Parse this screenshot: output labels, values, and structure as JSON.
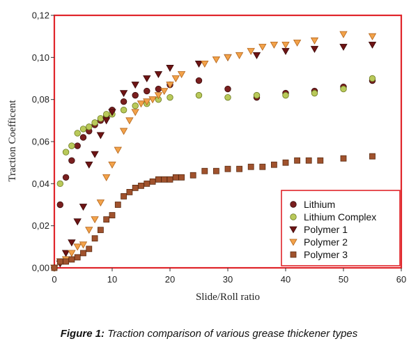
{
  "caption": {
    "label": "Figure 1:",
    "text": "Traction comparison of various grease thickener types"
  },
  "colors": {
    "frame": "#e0252a",
    "axis": "#333333",
    "legend_border": "#e0252a"
  },
  "chart_data": {
    "type": "scatter",
    "title": "",
    "xlabel": "Slide/Roll ratio",
    "ylabel": "Traction Coefficent",
    "xlim": [
      0,
      60
    ],
    "ylim": [
      0,
      0.12
    ],
    "xticks": [
      0,
      10,
      20,
      30,
      40,
      50,
      60
    ],
    "xtick_labels": [
      "0",
      "10",
      "20",
      "30",
      "40",
      "50",
      "60"
    ],
    "yticks": [
      0,
      0.02,
      0.04,
      0.06,
      0.08,
      0.1,
      0.12
    ],
    "ytick_labels": [
      "0,00",
      "0,02",
      "0,04",
      "0,06",
      "0,08",
      "0,10",
      "0,12"
    ],
    "grid": false,
    "legend_position": "bottom-right",
    "series": [
      {
        "name": "Lithium",
        "marker": "circle",
        "fill": "#7a1f1f",
        "stroke": "#3a0d0d",
        "points": [
          [
            0,
            0
          ],
          [
            1,
            0.03
          ],
          [
            2,
            0.043
          ],
          [
            3,
            0.051
          ],
          [
            4,
            0.058
          ],
          [
            5,
            0.062
          ],
          [
            6,
            0.065
          ],
          [
            7,
            0.068
          ],
          [
            8,
            0.07
          ],
          [
            9,
            0.072
          ],
          [
            10,
            0.075
          ],
          [
            12,
            0.079
          ],
          [
            14,
            0.082
          ],
          [
            16,
            0.084
          ],
          [
            18,
            0.085
          ],
          [
            20,
            0.087
          ],
          [
            25,
            0.089
          ],
          [
            30,
            0.085
          ],
          [
            35,
            0.081
          ],
          [
            40,
            0.083
          ],
          [
            45,
            0.084
          ],
          [
            50,
            0.086
          ],
          [
            55,
            0.089
          ]
        ]
      },
      {
        "name": "Lithium Complex",
        "marker": "circle",
        "fill": "#b9c95a",
        "stroke": "#6b7a20",
        "points": [
          [
            0,
            0
          ],
          [
            1,
            0.04
          ],
          [
            2,
            0.055
          ],
          [
            3,
            0.058
          ],
          [
            4,
            0.064
          ],
          [
            5,
            0.066
          ],
          [
            6,
            0.067
          ],
          [
            7,
            0.069
          ],
          [
            8,
            0.071
          ],
          [
            9,
            0.073
          ],
          [
            10,
            0.073
          ],
          [
            12,
            0.075
          ],
          [
            14,
            0.077
          ],
          [
            16,
            0.078
          ],
          [
            18,
            0.08
          ],
          [
            20,
            0.081
          ],
          [
            25,
            0.082
          ],
          [
            30,
            0.081
          ],
          [
            35,
            0.082
          ],
          [
            40,
            0.082
          ],
          [
            45,
            0.083
          ],
          [
            50,
            0.085
          ],
          [
            55,
            0.09
          ]
        ]
      },
      {
        "name": "Polymer 1",
        "marker": "triangle-down",
        "fill": "#6e1414",
        "stroke": "#3a0808",
        "points": [
          [
            0,
            0
          ],
          [
            1,
            0.002
          ],
          [
            2,
            0.007
          ],
          [
            3,
            0.012
          ],
          [
            4,
            0.022
          ],
          [
            5,
            0.029
          ],
          [
            6,
            0.049
          ],
          [
            7,
            0.054
          ],
          [
            8,
            0.063
          ],
          [
            9,
            0.07
          ],
          [
            10,
            0.074
          ],
          [
            12,
            0.083
          ],
          [
            14,
            0.087
          ],
          [
            16,
            0.09
          ],
          [
            18,
            0.092
          ],
          [
            20,
            0.095
          ],
          [
            25,
            0.097
          ],
          [
            30,
            0.1
          ],
          [
            35,
            0.101
          ],
          [
            40,
            0.103
          ],
          [
            45,
            0.104
          ],
          [
            50,
            0.105
          ],
          [
            55,
            0.106
          ]
        ]
      },
      {
        "name": "Polymer 2",
        "marker": "triangle-down",
        "fill": "#f2a24a",
        "stroke": "#b3641a",
        "points": [
          [
            0,
            0
          ],
          [
            1,
            0.003
          ],
          [
            2,
            0.004
          ],
          [
            3,
            0.007
          ],
          [
            4,
            0.01
          ],
          [
            5,
            0.011
          ],
          [
            6,
            0.018
          ],
          [
            7,
            0.023
          ],
          [
            8,
            0.031
          ],
          [
            9,
            0.043
          ],
          [
            10,
            0.049
          ],
          [
            11,
            0.056
          ],
          [
            12,
            0.065
          ],
          [
            13,
            0.07
          ],
          [
            14,
            0.074
          ],
          [
            15,
            0.078
          ],
          [
            16,
            0.079
          ],
          [
            17,
            0.08
          ],
          [
            18,
            0.082
          ],
          [
            19,
            0.084
          ],
          [
            20,
            0.087
          ],
          [
            21,
            0.09
          ],
          [
            22,
            0.092
          ],
          [
            26,
            0.097
          ],
          [
            28,
            0.099
          ],
          [
            30,
            0.1
          ],
          [
            32,
            0.101
          ],
          [
            34,
            0.103
          ],
          [
            36,
            0.105
          ],
          [
            38,
            0.106
          ],
          [
            40,
            0.106
          ],
          [
            42,
            0.107
          ],
          [
            45,
            0.108
          ],
          [
            50,
            0.111
          ],
          [
            55,
            0.11
          ]
        ]
      },
      {
        "name": "Polymer 3",
        "marker": "square",
        "fill": "#a0522d",
        "stroke": "#5a2a10",
        "points": [
          [
            0,
            0
          ],
          [
            1,
            0.003
          ],
          [
            2,
            0.003
          ],
          [
            3,
            0.004
          ],
          [
            4,
            0.005
          ],
          [
            5,
            0.007
          ],
          [
            6,
            0.009
          ],
          [
            7,
            0.014
          ],
          [
            8,
            0.018
          ],
          [
            9,
            0.023
          ],
          [
            10,
            0.025
          ],
          [
            11,
            0.03
          ],
          [
            12,
            0.034
          ],
          [
            13,
            0.036
          ],
          [
            14,
            0.038
          ],
          [
            15,
            0.039
          ],
          [
            16,
            0.04
          ],
          [
            17,
            0.041
          ],
          [
            18,
            0.042
          ],
          [
            19,
            0.042
          ],
          [
            20,
            0.042
          ],
          [
            21,
            0.043
          ],
          [
            22,
            0.043
          ],
          [
            24,
            0.044
          ],
          [
            26,
            0.046
          ],
          [
            28,
            0.046
          ],
          [
            30,
            0.047
          ],
          [
            32,
            0.047
          ],
          [
            34,
            0.048
          ],
          [
            36,
            0.048
          ],
          [
            38,
            0.049
          ],
          [
            40,
            0.05
          ],
          [
            42,
            0.051
          ],
          [
            44,
            0.051
          ],
          [
            46,
            0.051
          ],
          [
            50,
            0.052
          ],
          [
            55,
            0.053
          ]
        ]
      }
    ]
  }
}
